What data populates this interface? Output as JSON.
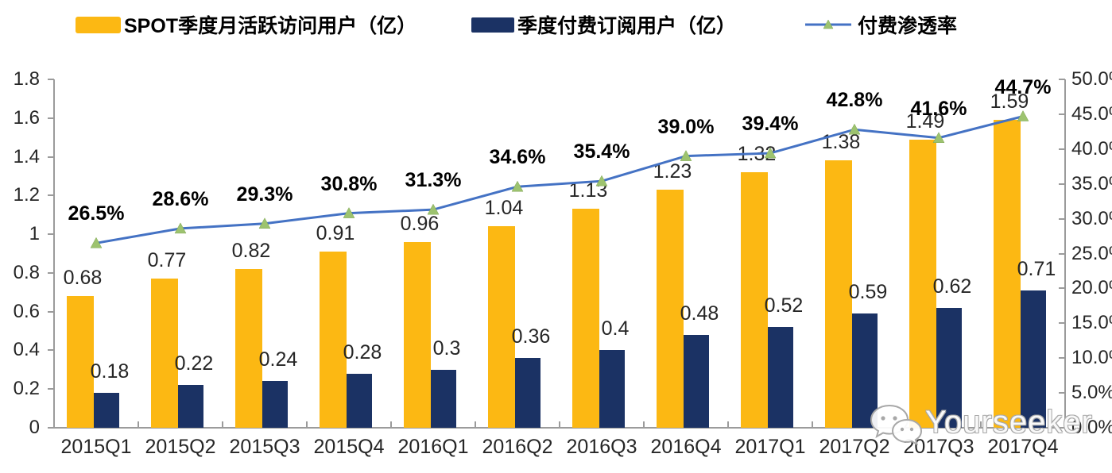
{
  "chart_data": {
    "type": "combo",
    "categories": [
      "2015Q1",
      "2015Q2",
      "2015Q3",
      "2015Q4",
      "2016Q1",
      "2016Q2",
      "2016Q3",
      "2016Q4",
      "2017Q1",
      "2017Q2",
      "2017Q3",
      "2017Q4"
    ],
    "series": [
      {
        "name": "SPOT季度月活跃访问用户（亿）",
        "type": "bar",
        "axis": "left",
        "color": "#FCB813",
        "values": [
          0.68,
          0.77,
          0.82,
          0.91,
          0.96,
          1.04,
          1.13,
          1.23,
          1.32,
          1.38,
          1.49,
          1.59
        ],
        "labels": [
          "0.68",
          "0.77",
          "0.82",
          "0.91",
          "0.96",
          "1.04",
          "1.13",
          "1.23",
          "1.32",
          "1.38",
          "1.49",
          "1.59"
        ]
      },
      {
        "name": "季度付费订阅用户（亿）",
        "type": "bar",
        "axis": "left",
        "color": "#1B3264",
        "values": [
          0.18,
          0.22,
          0.24,
          0.28,
          0.3,
          0.36,
          0.4,
          0.48,
          0.52,
          0.59,
          0.62,
          0.71
        ],
        "labels": [
          "0.18",
          "0.22",
          "0.24",
          "0.28",
          "0.3",
          "0.36",
          "0.4",
          "0.48",
          "0.52",
          "0.59",
          "0.62",
          "0.71"
        ]
      },
      {
        "name": "付费渗透率",
        "type": "line",
        "axis": "right",
        "color": "#4472C4",
        "marker_color": "#9DC36F",
        "values": [
          26.5,
          28.6,
          29.3,
          30.8,
          31.3,
          34.6,
          35.4,
          39.0,
          39.4,
          42.8,
          41.6,
          44.7
        ],
        "labels": [
          "26.5%",
          "28.6%",
          "29.3%",
          "30.8%",
          "31.3%",
          "34.6%",
          "35.4%",
          "39.0%",
          "39.4%",
          "42.8%",
          "41.6%",
          "44.7%"
        ]
      }
    ],
    "left_axis": {
      "min": 0,
      "max": 1.8,
      "ticks": [
        "0",
        "0.2",
        "0.4",
        "0.6",
        "0.8",
        "1",
        "1.2",
        "1.4",
        "1.6",
        "1.8"
      ]
    },
    "right_axis": {
      "min": 0,
      "max": 50,
      "ticks": [
        "0.0%",
        "5.0%",
        "10.0%",
        "15.0%",
        "20.0%",
        "25.0%",
        "30.0%",
        "35.0%",
        "40.0%",
        "45.0%",
        "50.0%"
      ]
    },
    "grid": false,
    "legend_position": "top"
  },
  "watermark": {
    "text": "Yourseeker",
    "icon": "wechat-icon"
  }
}
